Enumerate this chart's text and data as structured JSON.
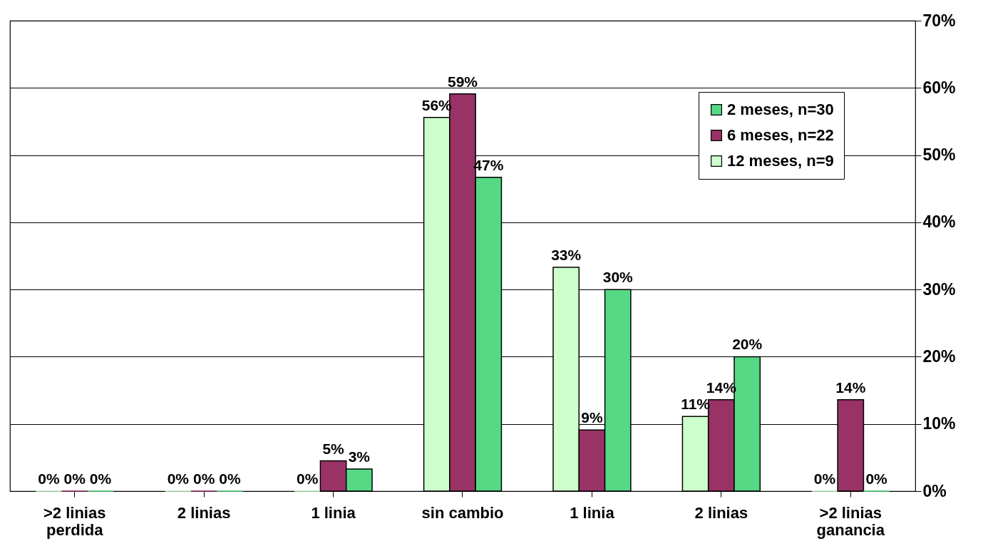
{
  "chart_data": {
    "type": "bar",
    "categories": [
      ">2 linias\nperdida",
      "2 linias",
      "1 linia",
      "sin cambio",
      "1 linia",
      "2 linias",
      ">2 linias\nganancia"
    ],
    "series": [
      {
        "name": "12 meses, n=9",
        "color": "#ccffcc",
        "values": [
          0,
          0,
          0,
          55.6,
          33.3,
          11.1,
          0
        ],
        "value_labels": [
          "0%",
          "0%",
          "0%",
          "56%",
          "33%",
          "11%",
          "0%"
        ]
      },
      {
        "name": "6 meses, n=22",
        "color": "#993366",
        "values": [
          0,
          0,
          4.5,
          59.1,
          9.1,
          13.6,
          13.6
        ],
        "value_labels": [
          "0%",
          "0%",
          "5%",
          "59%",
          "9%",
          "14%",
          "14%"
        ]
      },
      {
        "name": "2 meses, n=30",
        "color": "#55d985",
        "values": [
          0,
          0,
          3.3,
          46.7,
          30,
          20,
          0
        ],
        "value_labels": [
          "0%",
          "0%",
          "3%",
          "47%",
          "30%",
          "20%",
          "0%"
        ]
      }
    ],
    "ylim": [
      0,
      70
    ],
    "yticks": [
      {
        "value": 0,
        "label": "0%"
      },
      {
        "value": 10,
        "label": "10%"
      },
      {
        "value": 20,
        "label": "20%"
      },
      {
        "value": 30,
        "label": "30%"
      },
      {
        "value": 40,
        "label": "40%"
      },
      {
        "value": 50,
        "label": "50%"
      },
      {
        "value": 60,
        "label": "60%"
      },
      {
        "value": 70,
        "label": "70%"
      }
    ],
    "grid": "y",
    "legend": "top right"
  }
}
